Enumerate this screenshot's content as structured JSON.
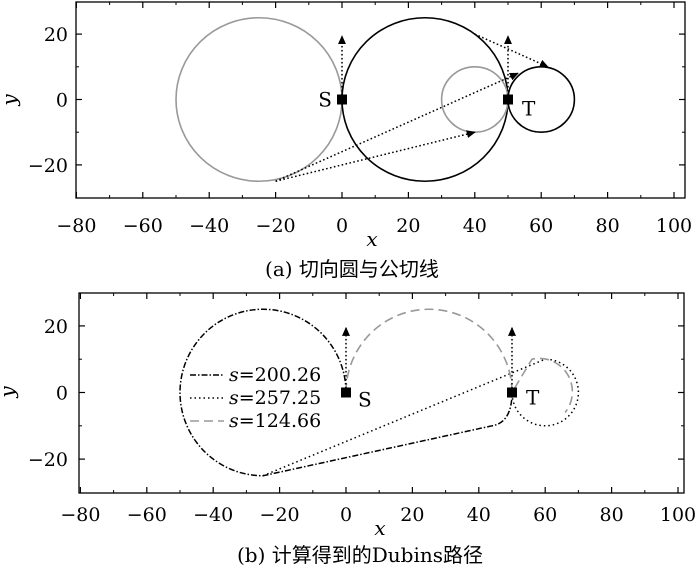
{
  "chart_data": [
    {
      "type": "geometric-plot",
      "panel": "(a)",
      "caption": "(a) 切向圆与公切线",
      "xlabel": "x",
      "ylabel": "y",
      "xlim": [
        -80,
        100
      ],
      "ylim": [
        -30,
        30
      ],
      "xticks": [
        -80,
        -60,
        -40,
        -20,
        0,
        20,
        40,
        60,
        80,
        100
      ],
      "yticks": [
        -20,
        0,
        20
      ],
      "xtick_labels": [
        "−80",
        "−60",
        "−40",
        "−20",
        "0",
        "20",
        "40",
        "60",
        "80",
        "100"
      ],
      "ytick_labels": [
        "−20",
        "0",
        "20"
      ],
      "points": [
        {
          "label": "S",
          "x": 0,
          "y": 0,
          "heading_deg": 90
        },
        {
          "label": "T",
          "x": 50,
          "y": 0,
          "heading_deg": 90
        }
      ],
      "circles": [
        {
          "cx": -25,
          "cy": 0,
          "r": 25,
          "color": "#999999"
        },
        {
          "cx": 25,
          "cy": 0,
          "r": 25,
          "color": "#000000"
        },
        {
          "cx": 40,
          "cy": 0,
          "r": 10,
          "color": "#999999"
        },
        {
          "cx": 60,
          "cy": 0,
          "r": 10,
          "color": "#000000"
        }
      ],
      "tangent_lines": [
        {
          "from": [
            -20,
            -25
          ],
          "to": [
            40,
            -10
          ]
        },
        {
          "from": [
            -20,
            -25
          ],
          "to": [
            53,
            8
          ]
        },
        {
          "from": [
            40,
            20
          ],
          "to": [
            62,
            10
          ]
        }
      ],
      "heading_arrows": [
        {
          "from": [
            0,
            0
          ],
          "to": [
            0,
            20
          ]
        },
        {
          "from": [
            50,
            0
          ],
          "to": [
            50,
            20
          ]
        }
      ]
    },
    {
      "type": "line",
      "panel": "(b)",
      "caption": "(b) 计算得到的Dubins路径",
      "xlabel": "x",
      "ylabel": "y",
      "xlim": [
        -80,
        100
      ],
      "ylim": [
        -30,
        30
      ],
      "xticks": [
        -80,
        -60,
        -40,
        -20,
        0,
        20,
        40,
        60,
        80,
        100
      ],
      "yticks": [
        -20,
        0,
        20
      ],
      "xtick_labels": [
        "−80",
        "−60",
        "−40",
        "−20",
        "0",
        "20",
        "40",
        "60",
        "80",
        "100"
      ],
      "ytick_labels": [
        "−20",
        "0",
        "20"
      ],
      "points": [
        {
          "label": "S",
          "x": 0,
          "y": 0,
          "heading_deg": 90
        },
        {
          "label": "T",
          "x": 50,
          "y": 0,
          "heading_deg": 90
        }
      ],
      "legend_position": "left-center",
      "series": [
        {
          "name": "s=200.26",
          "style": "dash-dot",
          "length": 200.26
        },
        {
          "name": "s=257.25",
          "style": "dotted",
          "length": 257.25
        },
        {
          "name": "s=124.66",
          "style": "dashed",
          "color": "#999999",
          "length": 124.66
        }
      ],
      "legend_prefix": "s",
      "legend_values": [
        "=200.26",
        "=257.25",
        "=124.66"
      ]
    }
  ]
}
